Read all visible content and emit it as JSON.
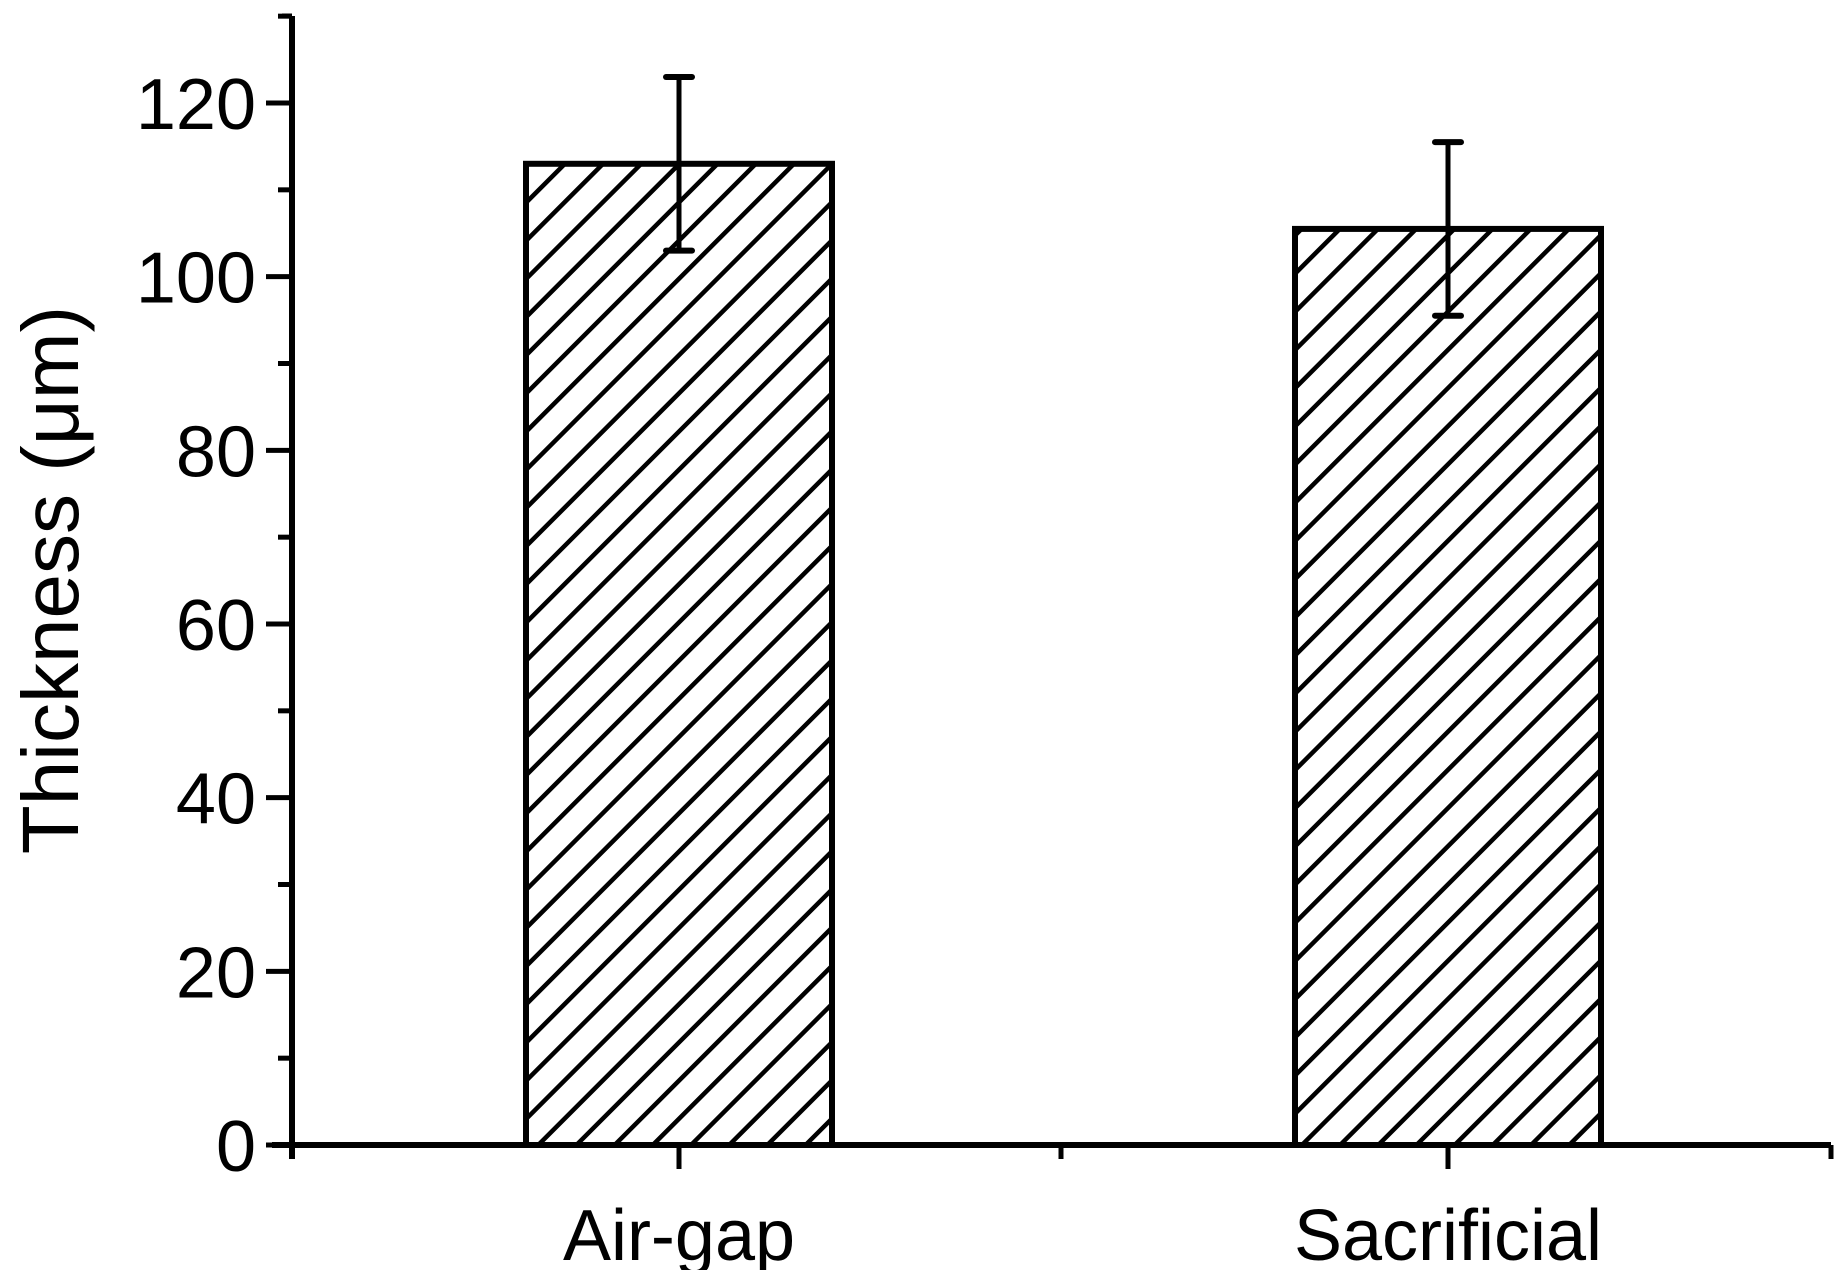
{
  "chart_data": {
    "type": "bar",
    "title": "",
    "xlabel": "",
    "ylabel": "Thickness (μm)",
    "categories": [
      "Air-gap",
      "Sacrificial"
    ],
    "values": [
      113,
      105.5
    ],
    "errors": [
      10,
      10
    ],
    "ylim": [
      0,
      130
    ],
    "yticks": [
      0,
      20,
      40,
      60,
      80,
      100,
      120
    ],
    "ytick_labels": [
      "0",
      "20",
      "40",
      "60",
      "80",
      "100",
      "120"
    ],
    "grid": false,
    "legend": null,
    "bar_fill": "diagonal-hatch",
    "colors": {
      "stroke": "#000000",
      "fill": "#ffffff"
    }
  }
}
